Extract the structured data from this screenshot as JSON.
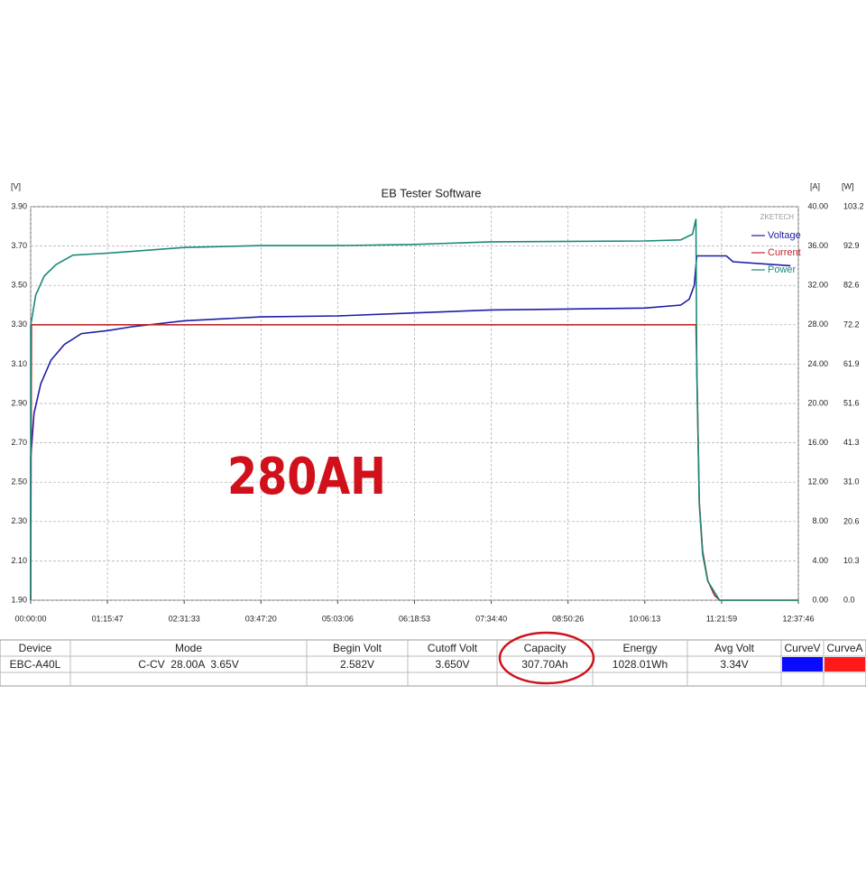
{
  "chart_data": {
    "type": "line",
    "title": "EB Tester Software",
    "y_unit": "[V]",
    "y2_unit": "[A]",
    "y3_unit": "[W]",
    "watermark": "ZKETECH",
    "annotation": "280AH",
    "xlim": [
      0,
      45466
    ],
    "xticks": [
      {
        "value": 0,
        "label": "00:00:00"
      },
      {
        "value": 4547,
        "label": "01:15:47"
      },
      {
        "value": 9093,
        "label": "02:31:33"
      },
      {
        "value": 13640,
        "label": "03:47:20"
      },
      {
        "value": 18186,
        "label": "05:03:06"
      },
      {
        "value": 22733,
        "label": "06:18:53"
      },
      {
        "value": 27280,
        "label": "07:34:40"
      },
      {
        "value": 31826,
        "label": "08:50:26"
      },
      {
        "value": 36373,
        "label": "10:06:13"
      },
      {
        "value": 40919,
        "label": "11:21:59"
      },
      {
        "value": 45466,
        "label": "12:37:46"
      }
    ],
    "ylim": [
      1.9,
      3.9
    ],
    "yticks": [
      {
        "value": 1.9,
        "label": "1.90"
      },
      {
        "value": 2.1,
        "label": "2.10"
      },
      {
        "value": 2.3,
        "label": "2.30"
      },
      {
        "value": 2.5,
        "label": "2.50"
      },
      {
        "value": 2.7,
        "label": "2.70"
      },
      {
        "value": 2.9,
        "label": "2.90"
      },
      {
        "value": 3.1,
        "label": "3.10"
      },
      {
        "value": 3.3,
        "label": "3.30"
      },
      {
        "value": 3.5,
        "label": "3.50"
      },
      {
        "value": 3.7,
        "label": "3.70"
      },
      {
        "value": 3.9,
        "label": "3.90"
      }
    ],
    "y2lim": [
      0,
      40
    ],
    "y2ticks": [
      {
        "value": 0,
        "label": "0.00"
      },
      {
        "value": 4,
        "label": "4.00"
      },
      {
        "value": 8,
        "label": "8.00"
      },
      {
        "value": 12,
        "label": "12.00"
      },
      {
        "value": 16,
        "label": "16.00"
      },
      {
        "value": 20,
        "label": "20.00"
      },
      {
        "value": 24,
        "label": "24.00"
      },
      {
        "value": 28,
        "label": "28.00"
      },
      {
        "value": 32,
        "label": "32.00"
      },
      {
        "value": 36,
        "label": "36.00"
      },
      {
        "value": 40,
        "label": "40.00"
      }
    ],
    "y3lim": [
      0,
      103.2
    ],
    "y3ticks": [
      {
        "value": 0,
        "label": "0.0"
      },
      10.3,
      20.6,
      {
        "value": 31,
        "label": "31.0"
      },
      41.3,
      51.6,
      61.9,
      72.2,
      82.6,
      92.9,
      103.2
    ],
    "grid": true,
    "legend": "upper right",
    "series": [
      {
        "name": "Voltage",
        "color": "#1c1ca8",
        "axis": "y",
        "x": [
          0,
          0,
          200,
          600,
          1200,
          2000,
          3000,
          4547,
          6000,
          9093,
          13640,
          18186,
          22733,
          27280,
          31826,
          36373,
          38500,
          39000,
          39300,
          39400,
          39450,
          41200,
          41600,
          45000
        ],
        "values": [
          1.9,
          2.62,
          2.85,
          3.0,
          3.12,
          3.2,
          3.255,
          3.27,
          3.29,
          3.32,
          3.34,
          3.345,
          3.36,
          3.375,
          3.38,
          3.385,
          3.4,
          3.43,
          3.5,
          3.6,
          3.65,
          3.65,
          3.62,
          3.6
        ]
      },
      {
        "name": "Current",
        "color": "#c0282a",
        "axis": "y2",
        "x": [
          0,
          50,
          39400,
          39450,
          39600,
          39800,
          40100,
          40500,
          40800,
          45466
        ],
        "values": [
          0,
          28,
          28,
          24,
          10,
          5,
          2,
          0.5,
          0,
          0
        ]
      },
      {
        "name": "Power",
        "color": "#1a8a7a",
        "axis": "y3",
        "x": [
          0,
          0,
          300,
          800,
          1500,
          2500,
          4547,
          9093,
          13640,
          18186,
          22733,
          27280,
          36373,
          38500,
          39200,
          39400,
          39450,
          39600,
          39800,
          40100,
          40800,
          45466
        ],
        "values": [
          0,
          72,
          80,
          85,
          88,
          90.5,
          91,
          92.5,
          93,
          93,
          93.3,
          94,
          94.2,
          94.5,
          96,
          100,
          60,
          25,
          12,
          5,
          0,
          0
        ]
      }
    ]
  },
  "table": {
    "headers": [
      "Device",
      "Mode",
      "Begin Volt",
      "Cutoff Volt",
      "Capacity",
      "Energy",
      "Avg Volt",
      "CurveV",
      "CurveA"
    ],
    "row": [
      "EBC-A40L",
      "C-CV  28.00A  3.65V",
      "2.582V",
      "3.650V",
      "307.70Ah",
      "1028.01Wh",
      "3.34V"
    ]
  }
}
